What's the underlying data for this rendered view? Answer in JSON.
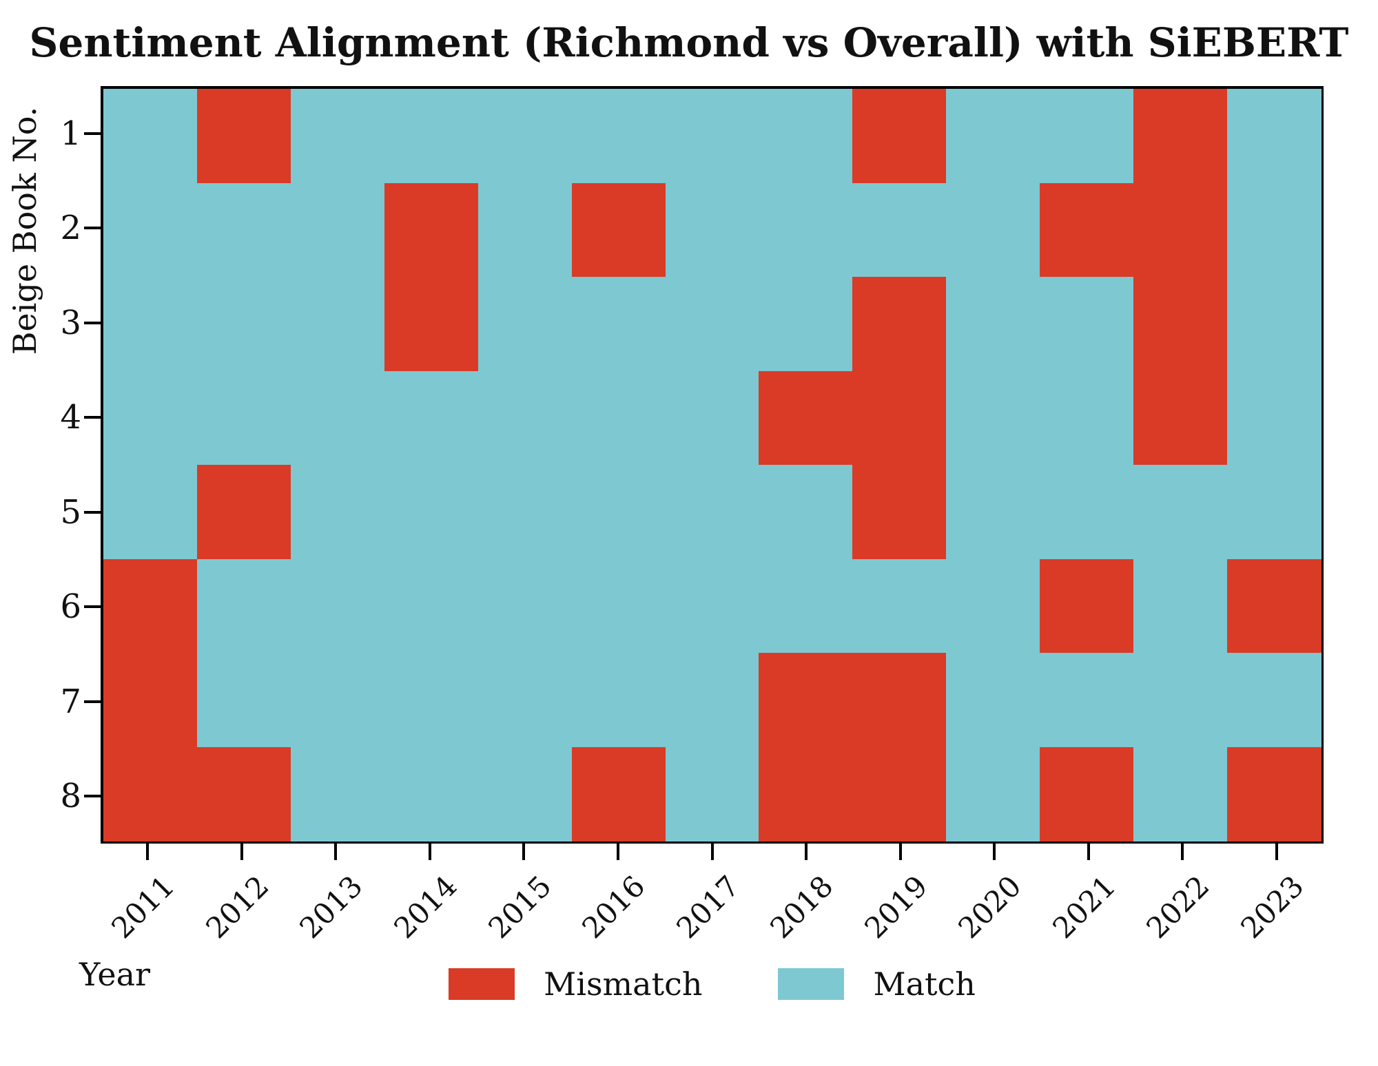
{
  "title": "Sentiment Alignment (Richmond vs Overall) with SiEBERT",
  "axes": {
    "x_label": "Year",
    "y_label": "Beige Book No.",
    "x_ticks": [
      "2011",
      "2012",
      "2013",
      "2014",
      "2015",
      "2016",
      "2017",
      "2018",
      "2019",
      "2020",
      "2021",
      "2022",
      "2023"
    ],
    "y_ticks": [
      "1",
      "2",
      "3",
      "4",
      "5",
      "6",
      "7",
      "8"
    ]
  },
  "legend": {
    "items": [
      {
        "label": "Mismatch",
        "color": "#d93b26"
      },
      {
        "label": "Match",
        "color": "#7ec8d2"
      }
    ]
  },
  "chart_data": {
    "type": "heatmap",
    "title": "Sentiment Alignment (Richmond vs Overall) with SiEBERT",
    "xlabel": "Year",
    "ylabel": "Beige Book No.",
    "x": [
      2011,
      2012,
      2013,
      2014,
      2015,
      2016,
      2017,
      2018,
      2019,
      2020,
      2021,
      2022,
      2023
    ],
    "y": [
      1,
      2,
      3,
      4,
      5,
      6,
      7,
      8
    ],
    "value_meaning": {
      "1": "Mismatch",
      "0": "Match"
    },
    "colors": {
      "mismatch": "#d93b26",
      "match": "#7ec8d2"
    },
    "grid": false,
    "legend_position": "bottom-center",
    "matrix": [
      [
        0,
        1,
        0,
        0,
        0,
        0,
        0,
        0,
        1,
        0,
        0,
        1,
        0
      ],
      [
        0,
        0,
        0,
        1,
        0,
        1,
        0,
        0,
        0,
        0,
        1,
        1,
        0
      ],
      [
        0,
        0,
        0,
        1,
        0,
        0,
        0,
        0,
        1,
        0,
        0,
        1,
        0
      ],
      [
        0,
        0,
        0,
        0,
        0,
        0,
        0,
        1,
        1,
        0,
        0,
        1,
        0
      ],
      [
        0,
        1,
        0,
        0,
        0,
        0,
        0,
        0,
        1,
        0,
        0,
        0,
        0
      ],
      [
        1,
        0,
        0,
        0,
        0,
        0,
        0,
        0,
        0,
        0,
        1,
        0,
        1
      ],
      [
        1,
        0,
        0,
        0,
        0,
        0,
        0,
        1,
        1,
        0,
        0,
        0,
        0
      ],
      [
        1,
        1,
        0,
        0,
        0,
        1,
        0,
        1,
        1,
        0,
        1,
        0,
        1
      ]
    ]
  }
}
